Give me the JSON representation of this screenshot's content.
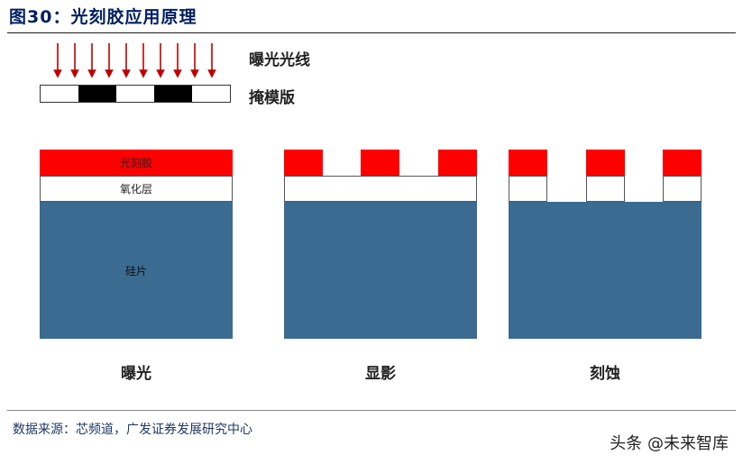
{
  "title": "图30：光刻胶应用原理",
  "labels": {
    "exposure_light": "曝光光线",
    "mask": "掩模版",
    "photoresist": "光刻胶",
    "oxide": "氧化层",
    "silicon": "硅片"
  },
  "steps": [
    "曝光",
    "显影",
    "刻蚀"
  ],
  "source": "数据来源：芯频道，广发证券发展研究中心",
  "watermark": "头条 @未来智库",
  "colors": {
    "photoresist": "#ff0000",
    "silicon": "#3b6b91",
    "oxide": "#ffffff",
    "arrows": "#c00000",
    "title": "#002060"
  }
}
